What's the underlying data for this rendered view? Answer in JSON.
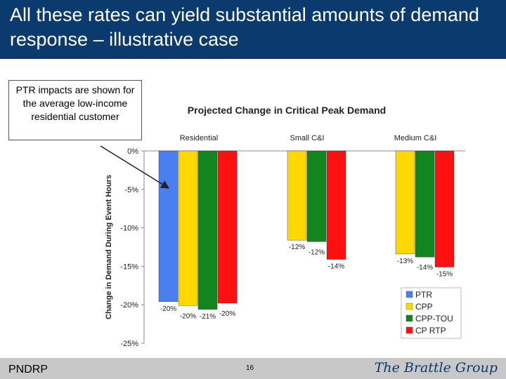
{
  "slide": {
    "title": "All these rates can yield substantial amounts of demand response – illustrative case",
    "callout": "PTR impacts are shown for the average low-income residential customer",
    "footer_left": "PNDRP",
    "page_number": "16",
    "logo": "The Brattle Group"
  },
  "colors": {
    "title_bar": "#0b3a6e",
    "PTR": "#4a7ff0",
    "CPP": "#ffd800",
    "CPP-TOU": "#12851e",
    "CP RTP": "#ff1010"
  },
  "chart_data": {
    "type": "bar",
    "title": "Projected Change in Critical Peak Demand",
    "ylabel": "Change in Demand During Event Hours",
    "ylim": [
      -25,
      0
    ],
    "yticks": [
      0,
      -5,
      -10,
      -15,
      -20,
      -25
    ],
    "ytick_labels": [
      "0%",
      "-5%",
      "-10%",
      "-15%",
      "-20%",
      "-25%"
    ],
    "grid": false,
    "legend_position": "bottom-right",
    "groups": [
      {
        "name": "Residential",
        "bars": [
          {
            "series": "PTR",
            "value": -19.6,
            "label": "-20%"
          },
          {
            "series": "CPP",
            "value": -20.1,
            "label": "-20%"
          },
          {
            "series": "CPP-TOU",
            "value": -20.6,
            "label": "-21%"
          },
          {
            "series": "CP RTP",
            "value": -19.8,
            "label": "-20%"
          }
        ]
      },
      {
        "name": "Small C&I",
        "bars": [
          {
            "series": "CPP",
            "value": -11.6,
            "label": "-12%"
          },
          {
            "series": "CPP-TOU",
            "value": -11.8,
            "label": "-12%"
          },
          {
            "series": "CP RTP",
            "value": -14.1,
            "label": "-14%"
          }
        ]
      },
      {
        "name": "Medium C&I",
        "bars": [
          {
            "series": "CPP",
            "value": -13.4,
            "label": "-13%"
          },
          {
            "series": "CPP-TOU",
            "value": -13.8,
            "label": "-14%"
          },
          {
            "series": "CP RTP",
            "value": -15.1,
            "label": "-15%"
          }
        ]
      }
    ],
    "legend": [
      "PTR",
      "CPP",
      "CPP-TOU",
      "CP RTP"
    ]
  }
}
